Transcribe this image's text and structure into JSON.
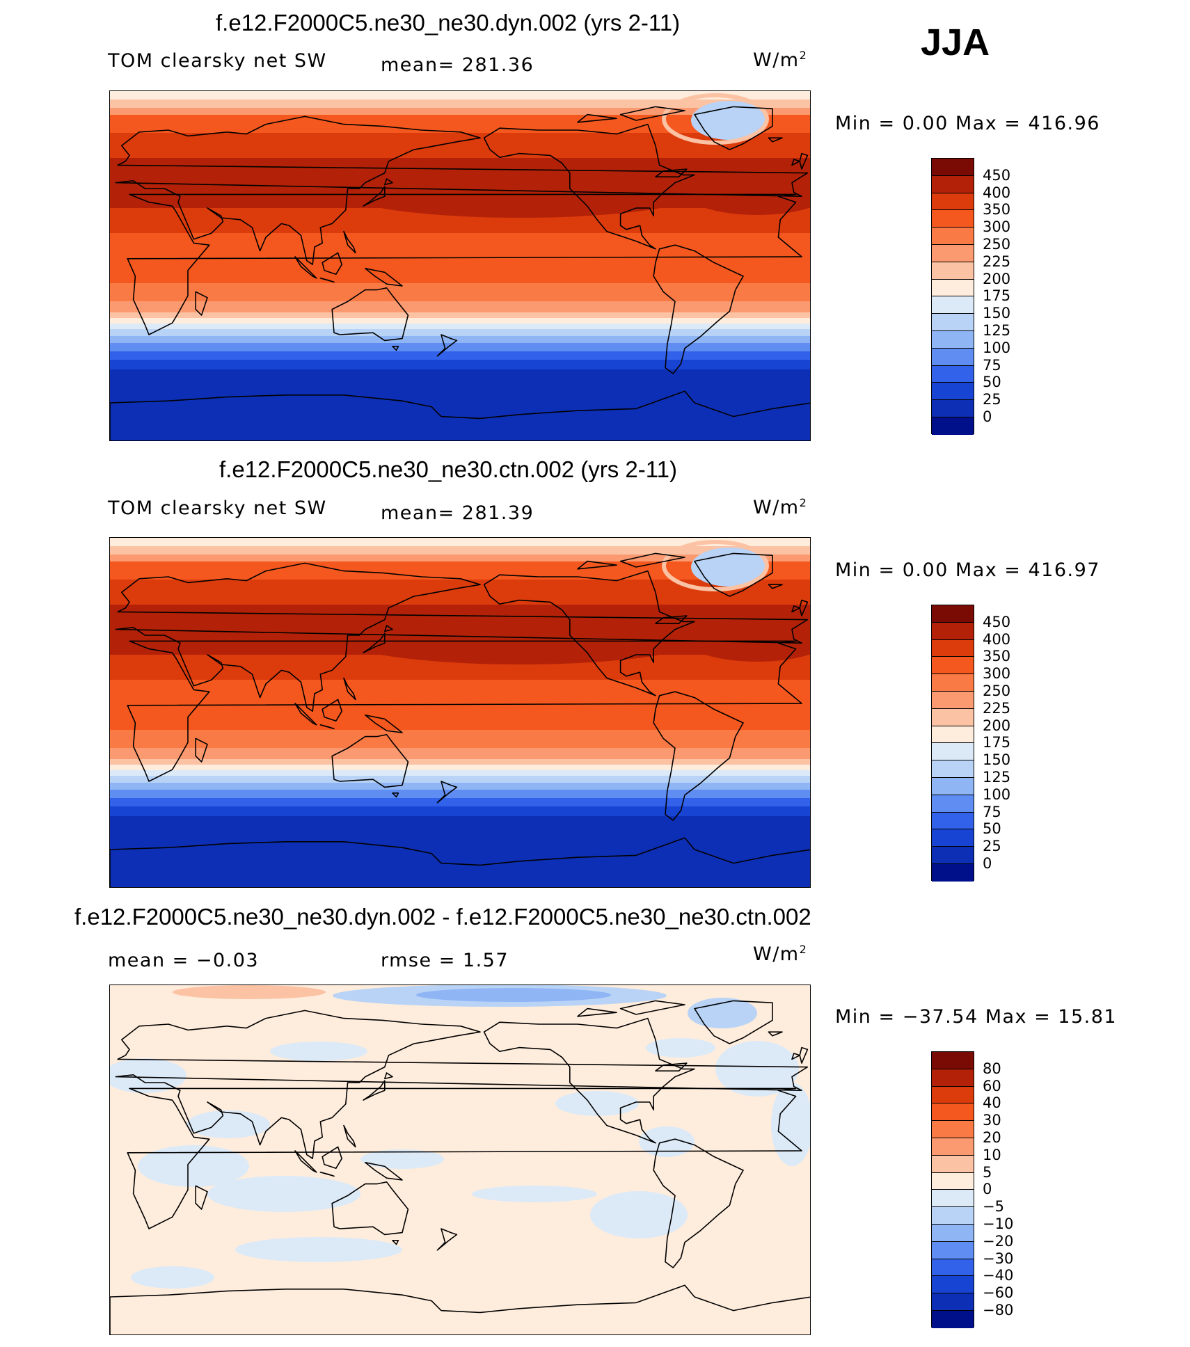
{
  "season": "JJA",
  "panels": [
    {
      "title": "f.e12.F2000C5.ne30_ne30.dyn.002 (yrs 2-11)",
      "variable": "TOM clearsky net SW",
      "stat1": "mean= 281.36",
      "stat2": "",
      "units": "W/m",
      "units_exp": "2",
      "minmax": "Min =    0.00 Max = 416.96",
      "kind": "field",
      "colorbar": {
        "labels": [
          "450",
          "400",
          "350",
          "300",
          "250",
          "225",
          "200",
          "175",
          "150",
          "125",
          "100",
          "75",
          "50",
          "25",
          "0"
        ],
        "colors": [
          "#7a0a04",
          "#b32208",
          "#dc3b0c",
          "#f5581e",
          "#fa7a45",
          "#fb9a70",
          "#fcc2a4",
          "#feecdc",
          "#dceaf8",
          "#b8d3f6",
          "#8fb5f5",
          "#5f8df2",
          "#3262ea",
          "#1844d4",
          "#0d2fb6",
          "#00108a"
        ]
      }
    },
    {
      "title": "f.e12.F2000C5.ne30_ne30.ctn.002 (yrs 2-11)",
      "variable": "TOM clearsky net SW",
      "stat1": "mean= 281.39",
      "stat2": "",
      "units": "W/m",
      "units_exp": "2",
      "minmax": "Min =    0.00 Max = 416.97",
      "kind": "field",
      "colorbar": {
        "labels": [
          "450",
          "400",
          "350",
          "300",
          "250",
          "225",
          "200",
          "175",
          "150",
          "125",
          "100",
          "75",
          "50",
          "25",
          "0"
        ],
        "colors": [
          "#7a0a04",
          "#b32208",
          "#dc3b0c",
          "#f5581e",
          "#fa7a45",
          "#fb9a70",
          "#fcc2a4",
          "#feecdc",
          "#dceaf8",
          "#b8d3f6",
          "#8fb5f5",
          "#5f8df2",
          "#3262ea",
          "#1844d4",
          "#0d2fb6",
          "#00108a"
        ]
      }
    },
    {
      "title": "f.e12.F2000C5.ne30_ne30.dyn.002 - f.e12.F2000C5.ne30_ne30.ctn.002",
      "variable": "",
      "stat1": "mean =  −0.03",
      "stat2": "rmse =    1.57",
      "units": "W/m",
      "units_exp": "2",
      "minmax": "Min = −37.54 Max =  15.81",
      "kind": "diff",
      "colorbar": {
        "labels": [
          "80",
          "60",
          "40",
          "30",
          "20",
          "10",
          "5",
          "0",
          "−5",
          "−10",
          "−20",
          "−30",
          "−40",
          "−60",
          "−80"
        ],
        "colors": [
          "#7a0a04",
          "#b32208",
          "#dc3b0c",
          "#f5581e",
          "#fa7a45",
          "#fb9a70",
          "#fcc2a4",
          "#feecdc",
          "#dceaf8",
          "#b8d3f6",
          "#8fb5f5",
          "#5f8df2",
          "#3262ea",
          "#1844d4",
          "#0d2fb6",
          "#00108a"
        ]
      }
    }
  ]
}
